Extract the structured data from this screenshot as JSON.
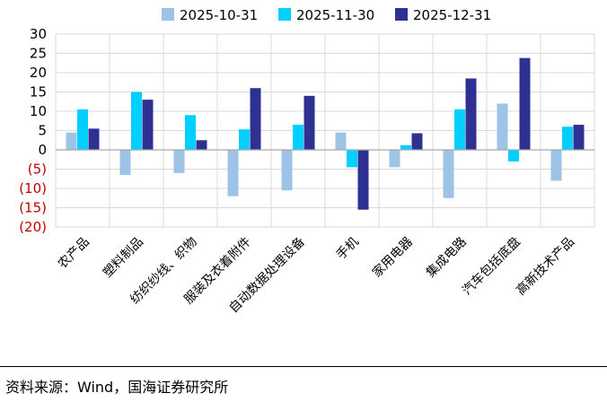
{
  "chart_data": {
    "type": "bar",
    "title": "",
    "xlabel": "",
    "ylabel": "",
    "ylim": [
      -20,
      30
    ],
    "yticks": [
      30,
      25,
      20,
      15,
      10,
      5,
      0,
      -5,
      -10,
      -15,
      -20
    ],
    "ytick_labels": [
      "30",
      "25",
      "20",
      "15",
      "10",
      "5",
      "0",
      "(5)",
      "(10)",
      "(15)",
      "(20)"
    ],
    "negative_tick_color": "#c00000",
    "positive_tick_color": "#000000",
    "grid": true,
    "legend_position": "top",
    "categories": [
      "农产品",
      "塑料制品",
      "纺织纱线、织物",
      "服装及衣着附件",
      "自动数据处理设备",
      "手机",
      "家用电器",
      "集成电路",
      "汽车包括底盘",
      "高新技术产品"
    ],
    "series": [
      {
        "name": "2025-10-31",
        "color": "#9dc3e6",
        "values": [
          4.5,
          -6.5,
          -6.0,
          -12.0,
          -10.5,
          4.5,
          -4.5,
          -12.5,
          12.0,
          -8.0
        ]
      },
      {
        "name": "2025-11-30",
        "color": "#00cfff",
        "values": [
          10.5,
          15.0,
          9.0,
          5.3,
          6.5,
          -4.5,
          1.2,
          10.5,
          -3.0,
          6.0
        ]
      },
      {
        "name": "2025-12-31",
        "color": "#2e3192",
        "values": [
          5.5,
          13.0,
          2.5,
          16.0,
          14.0,
          -15.5,
          4.3,
          18.5,
          23.8,
          6.5
        ]
      }
    ]
  },
  "source": "资料来源：Wind，国海证券研究所"
}
